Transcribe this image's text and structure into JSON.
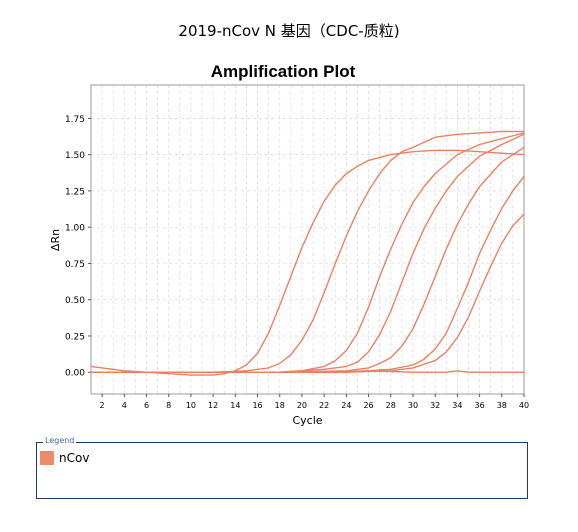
{
  "page_title": "2019-nCov   N 基因（CDC-质粒)",
  "legend": {
    "title": "Legend",
    "items": [
      {
        "label": "nCov",
        "color": "#f08a6c"
      }
    ]
  },
  "colors": {
    "series": "#e98163",
    "grid": "#d8d8d8",
    "legend_border": "#1f3d5c"
  },
  "chart_data": {
    "type": "line",
    "title": "Amplification Plot",
    "xlabel": "Cycle",
    "ylabel": "ΔRn",
    "xlim": [
      1,
      40
    ],
    "ylim": [
      -0.15,
      1.98
    ],
    "xticks": [
      2,
      4,
      6,
      8,
      10,
      12,
      14,
      16,
      18,
      20,
      22,
      24,
      26,
      28,
      30,
      32,
      34,
      36,
      38,
      40
    ],
    "yticks": [
      0.0,
      0.25,
      0.5,
      0.75,
      1.0,
      1.25,
      1.5,
      1.75
    ],
    "ytick_labels": [
      "0.00",
      "0.25",
      "0.50",
      "0.75",
      "1.00",
      "1.25",
      "1.50",
      "1.75"
    ],
    "grid": true,
    "legend_position": "below",
    "series": [
      {
        "x": [
          1,
          4,
          6,
          8,
          10,
          12,
          13,
          14,
          15,
          16,
          17,
          18,
          19,
          20,
          21,
          22,
          23,
          24,
          25,
          26,
          28,
          30,
          32,
          34,
          36,
          38,
          40
        ],
        "y": [
          0.04,
          0.01,
          0.0,
          -0.01,
          -0.02,
          -0.02,
          -0.01,
          0.01,
          0.05,
          0.13,
          0.27,
          0.46,
          0.66,
          0.86,
          1.03,
          1.18,
          1.29,
          1.37,
          1.42,
          1.46,
          1.5,
          1.52,
          1.53,
          1.53,
          1.52,
          1.51,
          1.5
        ]
      },
      {
        "x": [
          1,
          4,
          8,
          12,
          15,
          17,
          18,
          19,
          20,
          21,
          22,
          23,
          24,
          25,
          26,
          27,
          28,
          29,
          30,
          32,
          34,
          36,
          38,
          40
        ],
        "y": [
          0.0,
          0.0,
          0.0,
          0.0,
          0.01,
          0.03,
          0.06,
          0.12,
          0.22,
          0.36,
          0.55,
          0.75,
          0.94,
          1.11,
          1.25,
          1.37,
          1.46,
          1.52,
          1.55,
          1.62,
          1.64,
          1.65,
          1.66,
          1.66
        ]
      },
      {
        "x": [
          1,
          6,
          12,
          18,
          20,
          22,
          23,
          24,
          25,
          26,
          27,
          28,
          29,
          30,
          31,
          32,
          34,
          36,
          38,
          40
        ],
        "y": [
          0.0,
          0.0,
          0.0,
          0.0,
          0.01,
          0.04,
          0.08,
          0.15,
          0.27,
          0.45,
          0.66,
          0.85,
          1.02,
          1.17,
          1.28,
          1.37,
          1.5,
          1.57,
          1.61,
          1.65
        ]
      },
      {
        "x": [
          1,
          6,
          12,
          18,
          22,
          24,
          25,
          26,
          27,
          28,
          29,
          30,
          31,
          32,
          33,
          34,
          36,
          38,
          40
        ],
        "y": [
          0.0,
          0.0,
          0.0,
          0.0,
          0.02,
          0.04,
          0.07,
          0.14,
          0.26,
          0.42,
          0.62,
          0.82,
          0.99,
          1.13,
          1.25,
          1.35,
          1.49,
          1.57,
          1.64
        ]
      },
      {
        "x": [
          1,
          6,
          12,
          18,
          24,
          26,
          27,
          28,
          29,
          30,
          31,
          32,
          33,
          34,
          35,
          36,
          38,
          40
        ],
        "y": [
          0.0,
          0.0,
          0.0,
          0.0,
          0.01,
          0.03,
          0.06,
          0.1,
          0.18,
          0.3,
          0.47,
          0.66,
          0.85,
          1.02,
          1.16,
          1.28,
          1.45,
          1.55
        ]
      },
      {
        "x": [
          1,
          6,
          12,
          18,
          24,
          28,
          30,
          31,
          32,
          33,
          34,
          35,
          36,
          37,
          38,
          39,
          40
        ],
        "y": [
          0.0,
          0.0,
          0.0,
          0.0,
          0.0,
          0.02,
          0.05,
          0.09,
          0.16,
          0.27,
          0.44,
          0.62,
          0.82,
          0.98,
          1.13,
          1.25,
          1.35
        ]
      },
      {
        "x": [
          1,
          6,
          12,
          18,
          24,
          28,
          30,
          32,
          33,
          34,
          35,
          36,
          37,
          38,
          39,
          40
        ],
        "y": [
          0.0,
          0.0,
          0.0,
          0.0,
          0.0,
          0.01,
          0.03,
          0.08,
          0.14,
          0.24,
          0.38,
          0.56,
          0.73,
          0.89,
          1.01,
          1.09
        ]
      },
      {
        "x": [
          1,
          6,
          12,
          18,
          22,
          26,
          30,
          33,
          34,
          35,
          36,
          38,
          40
        ],
        "y": [
          0.0,
          0.0,
          0.0,
          0.0,
          0.0,
          0.01,
          0.0,
          0.0,
          0.01,
          0.0,
          0.0,
          0.0,
          0.0
        ]
      }
    ]
  }
}
